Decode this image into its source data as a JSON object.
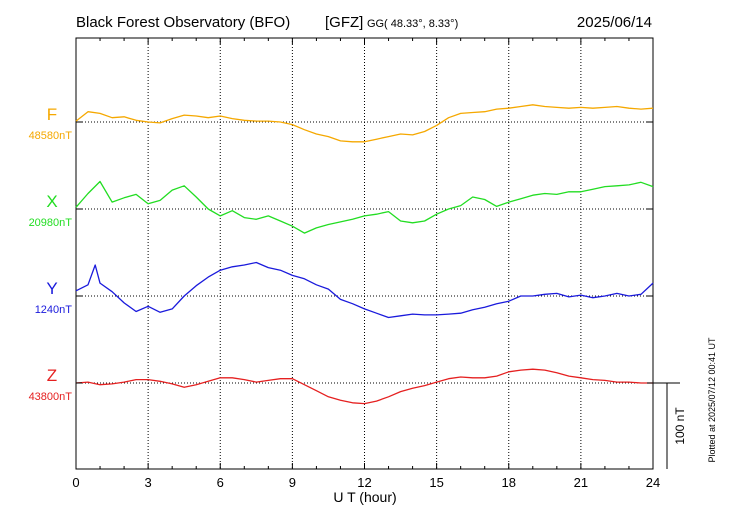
{
  "header": {
    "title": "Black Forest Observatory (BFO)",
    "institute": "[GFZ]",
    "coord_prefix": "GG",
    "coords": "( 48.33°,   8.33°)",
    "date": "2025/06/14"
  },
  "footer": {
    "plotted": "Plotted at 2025/07/12 00:41 UT"
  },
  "chart_data": {
    "type": "line",
    "title": "Black Forest Observatory (BFO)",
    "xlabel": "U T (hour)",
    "xlim": [
      0,
      24
    ],
    "xticks": [
      "0",
      "3",
      "6",
      "9",
      "12",
      "15",
      "18",
      "21",
      "24"
    ],
    "grid": true,
    "scale_bar": {
      "label": "100 nT",
      "value_nT": 100
    },
    "series": [
      {
        "name": "F",
        "baseline_label": "48580nT",
        "baseline_nT": 48580,
        "color": "#f5a800",
        "x": [
          0,
          0.5,
          1,
          1.5,
          2,
          2.5,
          3,
          3.5,
          4,
          4.5,
          5,
          5.5,
          6,
          6.5,
          7,
          7.5,
          8,
          8.5,
          9,
          9.5,
          10,
          10.5,
          11,
          11.5,
          12,
          12.5,
          13,
          13.5,
          14,
          14.5,
          15,
          15.5,
          16,
          16.5,
          17,
          17.5,
          18,
          18.5,
          19,
          19.5,
          20,
          20.5,
          21,
          21.5,
          22,
          22.5,
          23,
          23.5,
          24
        ],
        "values": [
          48581,
          48592,
          48590,
          48585,
          48586,
          48582,
          48580,
          48579,
          48584,
          48588,
          48587,
          48585,
          48587,
          48584,
          48582,
          48581,
          48581,
          48580,
          48577,
          48571,
          48566,
          48563,
          48558,
          48557,
          48557,
          48560,
          48563,
          48566,
          48565,
          48569,
          48576,
          48585,
          48590,
          48591,
          48592,
          48595,
          48596,
          48598,
          48600,
          48598,
          48597,
          48596,
          48597,
          48596,
          48597,
          48598,
          48596,
          48595,
          48596
        ]
      },
      {
        "name": "X",
        "baseline_label": "20980nT",
        "baseline_nT": 20980,
        "color": "#22dd22",
        "x": [
          0,
          0.5,
          1,
          1.5,
          2,
          2.5,
          3,
          3.5,
          4,
          4.5,
          5,
          5.5,
          6,
          6.5,
          7,
          7.5,
          8,
          8.5,
          9,
          9.5,
          10,
          10.5,
          11,
          11.5,
          12,
          12.5,
          13,
          13.5,
          14,
          14.5,
          15,
          15.5,
          16,
          16.5,
          17,
          17.5,
          18,
          18.5,
          19,
          19.5,
          20,
          20.5,
          21,
          21.5,
          22,
          22.5,
          23,
          23.5,
          24
        ],
        "values": [
          20982,
          20998,
          21012,
          20988,
          20993,
          20997,
          20986,
          20990,
          21002,
          21007,
          20994,
          20980,
          20972,
          20978,
          20970,
          20968,
          20972,
          20966,
          20960,
          20952,
          20958,
          20962,
          20965,
          20968,
          20972,
          20974,
          20977,
          20966,
          20964,
          20966,
          20974,
          20980,
          20984,
          20994,
          20991,
          20983,
          20988,
          20992,
          20996,
          20998,
          20997,
          21000,
          21000,
          21003,
          21006,
          21007,
          21008,
          21011,
          21006
        ]
      },
      {
        "name": "Y",
        "baseline_label": "1240nT",
        "baseline_nT": 1240,
        "color": "#1a1adc",
        "x": [
          0,
          0.5,
          0.8,
          1,
          1.5,
          2,
          2.5,
          3,
          3.5,
          4,
          4.5,
          5,
          5.5,
          6,
          6.5,
          7,
          7.5,
          8,
          8.5,
          9,
          9.5,
          10,
          10.5,
          11,
          11.5,
          12,
          12.5,
          13,
          13.5,
          14,
          14.5,
          15,
          15.5,
          16,
          16.5,
          17,
          17.5,
          18,
          18.5,
          19,
          19.5,
          20,
          20.5,
          21,
          21.5,
          22,
          22.5,
          23,
          23.5,
          24
        ],
        "values": [
          1246,
          1253,
          1276,
          1255,
          1245,
          1232,
          1222,
          1228,
          1221,
          1225,
          1240,
          1252,
          1262,
          1270,
          1274,
          1276,
          1279,
          1273,
          1270,
          1264,
          1260,
          1253,
          1248,
          1236,
          1231,
          1225,
          1220,
          1215,
          1217,
          1219,
          1218,
          1218,
          1219,
          1220,
          1224,
          1227,
          1231,
          1234,
          1240,
          1240,
          1242,
          1243,
          1239,
          1241,
          1238,
          1240,
          1243,
          1240,
          1242,
          1255
        ]
      },
      {
        "name": "Z",
        "baseline_label": "43800nT",
        "baseline_nT": 43800,
        "color": "#e52020",
        "x": [
          0,
          0.5,
          1,
          1.5,
          2,
          2.5,
          3,
          3.5,
          4,
          4.5,
          5,
          5.5,
          6,
          6.5,
          7,
          7.5,
          8,
          8.5,
          9,
          9.5,
          10,
          10.5,
          11,
          11.5,
          12,
          12.5,
          13,
          13.5,
          14,
          14.5,
          15,
          15.5,
          16,
          16.5,
          17,
          17.5,
          18,
          18.5,
          19,
          19.5,
          20,
          20.5,
          21,
          21.5,
          22,
          22.5,
          23,
          23.5,
          24
        ],
        "values": [
          43800,
          43801,
          43798,
          43799,
          43801,
          43804,
          43804,
          43802,
          43799,
          43795,
          43798,
          43802,
          43806,
          43806,
          43804,
          43801,
          43803,
          43805,
          43805,
          43798,
          43791,
          43784,
          43780,
          43777,
          43776,
          43779,
          43784,
          43790,
          43794,
          43797,
          43801,
          43805,
          43807,
          43806,
          43806,
          43808,
          43813,
          43815,
          43816,
          43815,
          43812,
          43808,
          43806,
          43804,
          43803,
          43801,
          43801,
          43800,
          43800
        ]
      }
    ]
  }
}
